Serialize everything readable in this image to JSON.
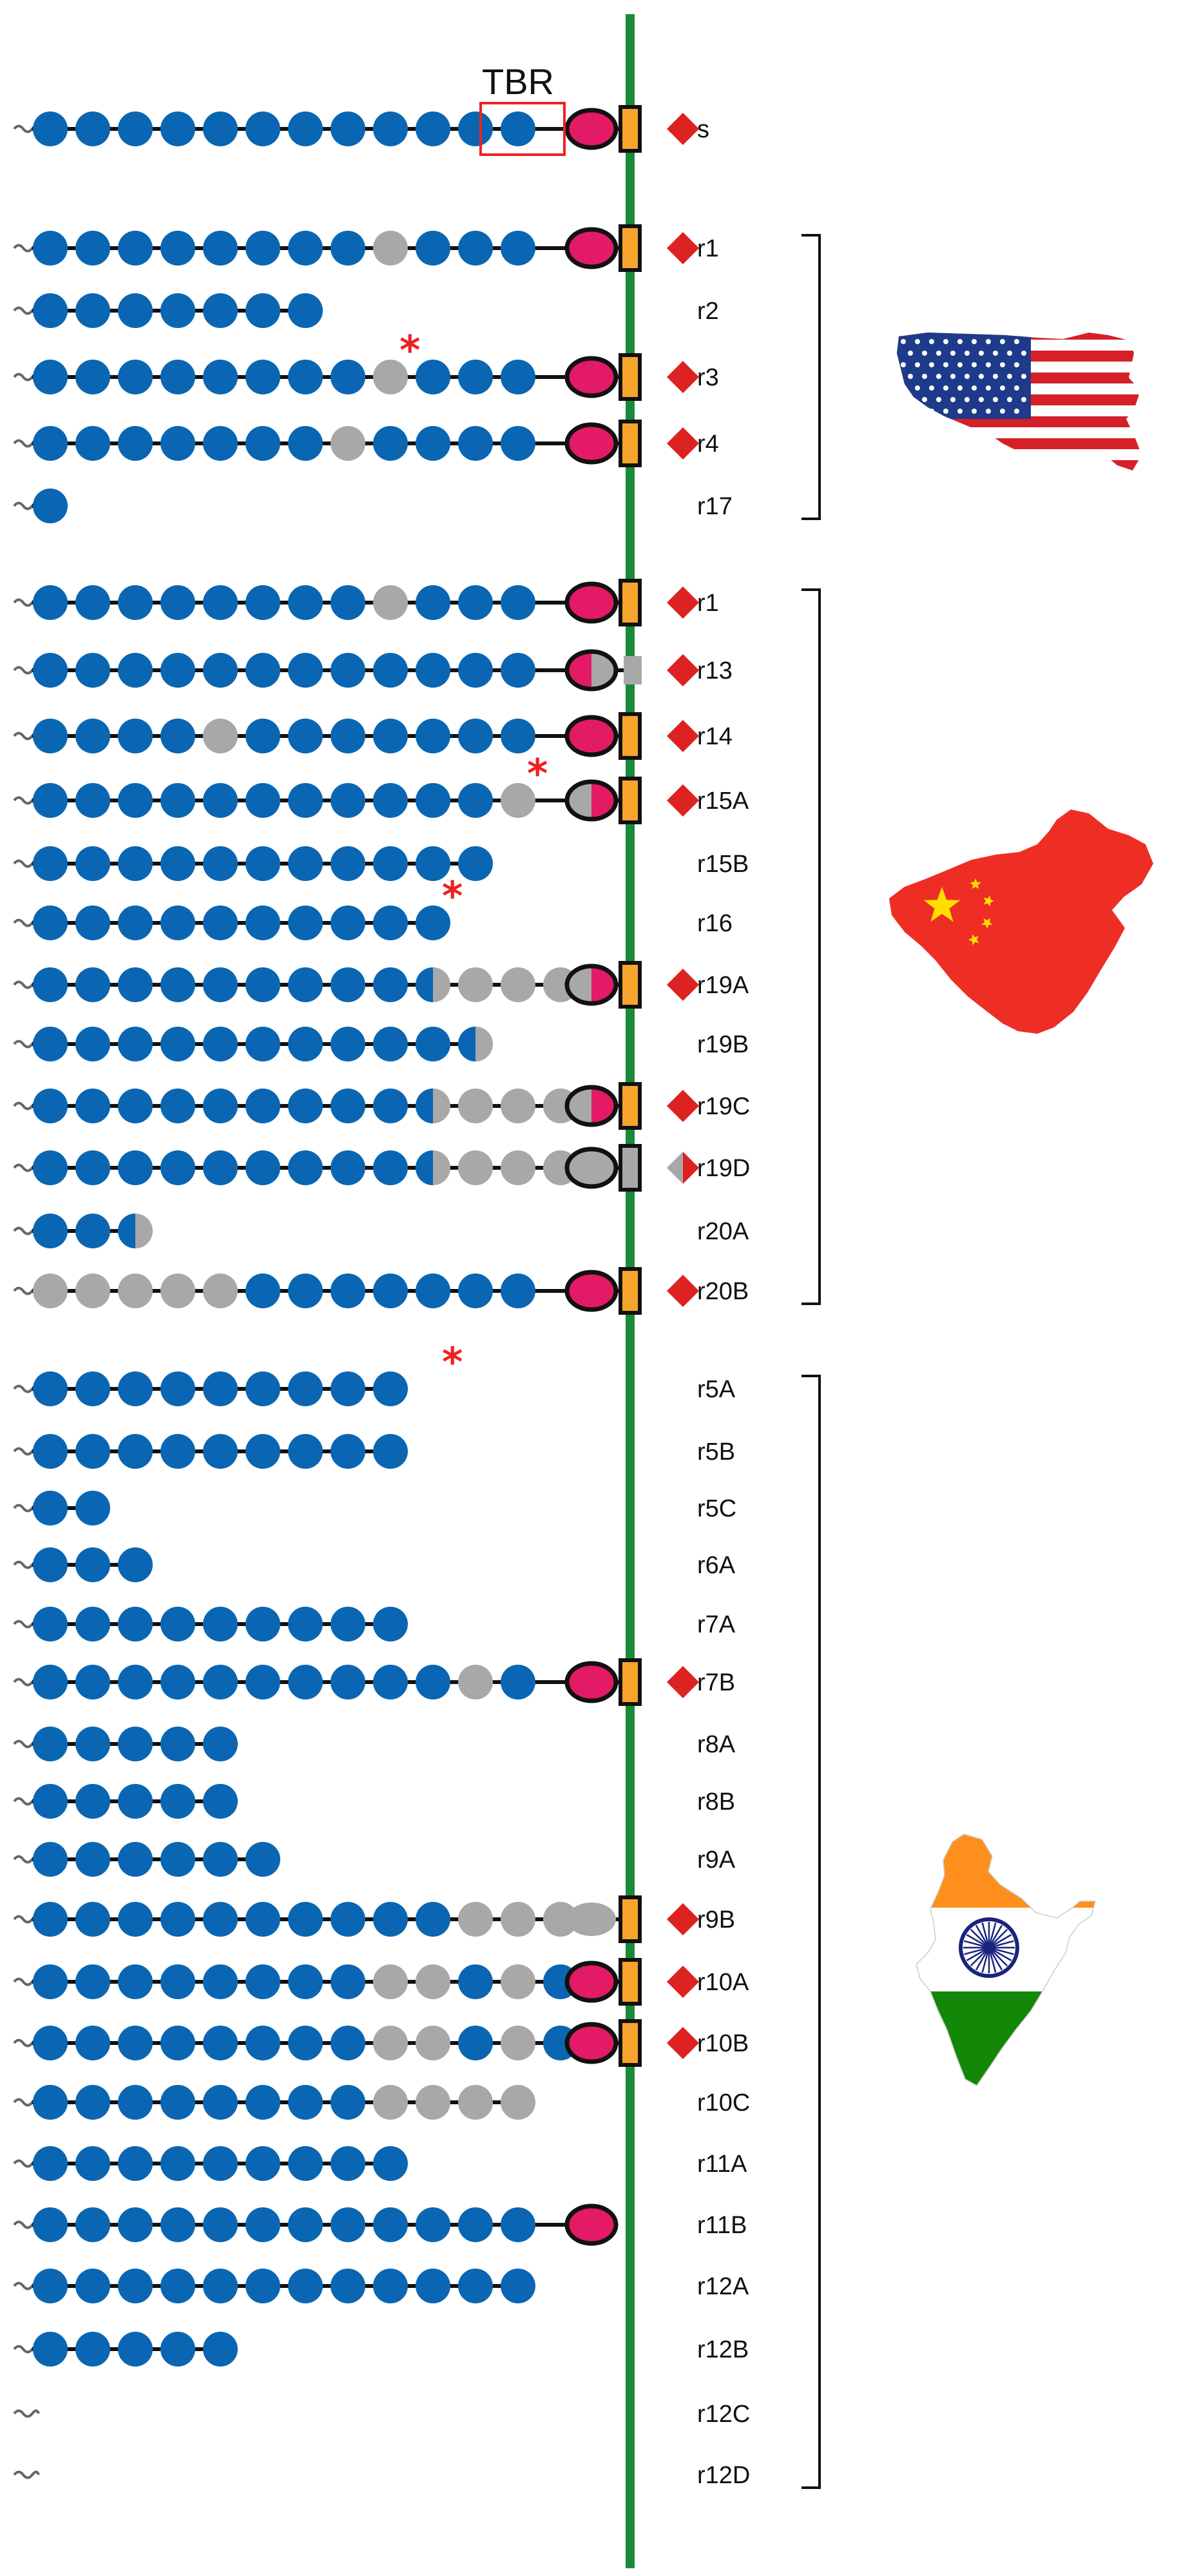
{
  "tbr_label": "TBR",
  "colors": {
    "blue": "#0a66b2",
    "grey": "#a8a8a8",
    "pink": "#e31a66",
    "orange": "#f6a42b",
    "red": "#dd2222",
    "green": "#1a8a3a",
    "star": "#ee2222"
  },
  "rows": [
    {
      "id": "s",
      "label": "s",
      "left": [
        "b",
        "b",
        "b",
        "b",
        "b",
        "b",
        "b",
        "b",
        "b",
        "b",
        "b",
        "b"
      ],
      "oval": "pink",
      "box": "orange",
      "diamond": "red"
    },
    {
      "id": "usa-r1",
      "label": "r1",
      "left": [
        "b",
        "b",
        "b",
        "b",
        "b",
        "b",
        "b",
        "b",
        "g",
        "b",
        "b",
        "b"
      ],
      "oval": "pink",
      "box": "orange",
      "diamond": "red"
    },
    {
      "id": "r2",
      "label": "r2",
      "left": [
        "b",
        "b",
        "b",
        "b",
        "b",
        "b",
        "b"
      ]
    },
    {
      "id": "r3",
      "label": "r3",
      "left": [
        "b",
        "b",
        "b",
        "b",
        "b",
        "b",
        "b",
        "b",
        "g",
        "b",
        "b",
        "b"
      ],
      "oval": "pink",
      "box": "orange",
      "diamond": "red",
      "star": 8
    },
    {
      "id": "r4",
      "label": "r4",
      "left": [
        "b",
        "b",
        "b",
        "b",
        "b",
        "b",
        "b",
        "g",
        "b",
        "b",
        "b",
        "b"
      ],
      "oval": "pink",
      "box": "orange",
      "diamond": "red"
    },
    {
      "id": "r17",
      "label": "r17",
      "left": [
        "b"
      ]
    },
    {
      "id": "china-r1",
      "label": "r1",
      "left": [
        "b",
        "b",
        "b",
        "b",
        "b",
        "b",
        "b",
        "b",
        "g",
        "b",
        "b",
        "b"
      ],
      "oval": "pink",
      "box": "orange",
      "diamond": "red"
    },
    {
      "id": "r13",
      "label": "r13",
      "left": [
        "b",
        "b",
        "b",
        "b",
        "b",
        "b",
        "b",
        "b",
        "b",
        "b",
        "b",
        "b"
      ],
      "oval": "pink-grey",
      "box": "grey-small",
      "diamond": "red"
    },
    {
      "id": "r14",
      "label": "r14",
      "left": [
        "b",
        "b",
        "b",
        "b",
        "g",
        "b",
        "b",
        "b",
        "b",
        "b",
        "b",
        "b"
      ],
      "oval": "pink",
      "box": "orange",
      "diamond": "red"
    },
    {
      "id": "r15A",
      "label": "r15A",
      "left": [
        "b",
        "b",
        "b",
        "b",
        "b",
        "b",
        "b",
        "b",
        "b",
        "b",
        "b",
        "g"
      ],
      "oval": "grey-pink",
      "box": "orange",
      "diamond": "red",
      "star": 11
    },
    {
      "id": "r15B",
      "label": "r15B",
      "left": [
        "b",
        "b",
        "b",
        "b",
        "b",
        "b",
        "b",
        "b",
        "b",
        "b",
        "b"
      ]
    },
    {
      "id": "r16",
      "label": "r16",
      "left": [
        "b",
        "b",
        "b",
        "b",
        "b",
        "b",
        "b",
        "b",
        "b",
        "b"
      ],
      "star": 9
    },
    {
      "id": "r19A",
      "label": "r19A",
      "left": [
        "b",
        "b",
        "b",
        "b",
        "b",
        "b",
        "b",
        "b",
        "b",
        "bg",
        "g",
        "g",
        "g"
      ],
      "oval": "grey-pink",
      "box": "orange",
      "diamond": "red"
    },
    {
      "id": "r19B",
      "label": "r19B",
      "left": [
        "b",
        "b",
        "b",
        "b",
        "b",
        "b",
        "b",
        "b",
        "b",
        "b",
        "bg"
      ]
    },
    {
      "id": "r19C",
      "label": "r19C",
      "left": [
        "b",
        "b",
        "b",
        "b",
        "b",
        "b",
        "b",
        "b",
        "b",
        "bg",
        "g",
        "g",
        "g"
      ],
      "oval": "grey-pink",
      "box": "orange",
      "diamond": "red"
    },
    {
      "id": "r19D",
      "label": "r19D",
      "left": [
        "b",
        "b",
        "b",
        "b",
        "b",
        "b",
        "b",
        "b",
        "b",
        "bg",
        "g",
        "g",
        "g"
      ],
      "oval": "grey",
      "box": "grey",
      "diamond": "grey-red"
    },
    {
      "id": "r20A",
      "label": "r20A",
      "left": [
        "b",
        "b",
        "bg"
      ]
    },
    {
      "id": "r20B",
      "label": "r20B",
      "left": [
        "g",
        "g",
        "g",
        "g",
        "g",
        "b",
        "b",
        "b",
        "b",
        "b",
        "b",
        "b"
      ],
      "oval": "pink",
      "box": "orange",
      "diamond": "red"
    },
    {
      "id": "r5A",
      "label": "r5A",
      "left": [
        "b",
        "b",
        "b",
        "b",
        "b",
        "b",
        "b",
        "b",
        "b"
      ],
      "star": 9
    },
    {
      "id": "r5B",
      "label": "r5B",
      "left": [
        "b",
        "b",
        "b",
        "b",
        "b",
        "b",
        "b",
        "b",
        "b"
      ]
    },
    {
      "id": "r5C",
      "label": "r5C",
      "left": [
        "b",
        "b"
      ]
    },
    {
      "id": "r6A",
      "label": "r6A",
      "left": [
        "b",
        "b",
        "b"
      ]
    },
    {
      "id": "r7A",
      "label": "r7A",
      "left": [
        "b",
        "b",
        "b",
        "b",
        "b",
        "b",
        "b",
        "b",
        "b"
      ]
    },
    {
      "id": "r7B",
      "label": "r7B",
      "left": [
        "b",
        "b",
        "b",
        "b",
        "b",
        "b",
        "b",
        "b",
        "b",
        "b",
        "g",
        "b"
      ],
      "oval": "pink",
      "box": "orange",
      "diamond": "red"
    },
    {
      "id": "r8A",
      "label": "r8A",
      "left": [
        "b",
        "b",
        "b",
        "b",
        "b"
      ]
    },
    {
      "id": "r8B",
      "label": "r8B",
      "left": [
        "b",
        "b",
        "b",
        "b",
        "b"
      ]
    },
    {
      "id": "r9A",
      "label": "r9A",
      "left": [
        "b",
        "b",
        "b",
        "b",
        "b",
        "b"
      ]
    },
    {
      "id": "r9B",
      "label": "r9B",
      "left": [
        "b",
        "b",
        "b",
        "b",
        "b",
        "b",
        "b",
        "b",
        "b",
        "b",
        "g",
        "g",
        "g"
      ],
      "oval": "grey",
      "box": "orange",
      "diamond": "red",
      "ovalFlat": true
    },
    {
      "id": "r10A",
      "label": "r10A",
      "left": [
        "b",
        "b",
        "b",
        "b",
        "b",
        "b",
        "b",
        "b",
        "g",
        "g",
        "b",
        "g",
        "b"
      ],
      "oval": "pink",
      "box": "orange",
      "diamond": "red"
    },
    {
      "id": "r10B",
      "label": "r10B",
      "left": [
        "b",
        "b",
        "b",
        "b",
        "b",
        "b",
        "b",
        "b",
        "g",
        "g",
        "b",
        "g",
        "b"
      ],
      "oval": "pink",
      "box": "orange",
      "diamond": "red"
    },
    {
      "id": "r10C",
      "label": "r10C",
      "left": [
        "b",
        "b",
        "b",
        "b",
        "b",
        "b",
        "b",
        "b",
        "g",
        "g",
        "g",
        "g"
      ]
    },
    {
      "id": "r11A",
      "label": "r11A",
      "left": [
        "b",
        "b",
        "b",
        "b",
        "b",
        "b",
        "b",
        "b",
        "b"
      ]
    },
    {
      "id": "r11B",
      "label": "r11B",
      "left": [
        "b",
        "b",
        "b",
        "b",
        "b",
        "b",
        "b",
        "b",
        "b",
        "b",
        "b",
        "b"
      ],
      "oval": "pink"
    },
    {
      "id": "r12A",
      "label": "r12A",
      "left": [
        "b",
        "b",
        "b",
        "b",
        "b",
        "b",
        "b",
        "b",
        "b",
        "b",
        "b",
        "b"
      ]
    },
    {
      "id": "r12B",
      "label": "r12B",
      "left": [
        "b",
        "b",
        "b",
        "b",
        "b"
      ]
    },
    {
      "id": "r12C",
      "label": "r12C",
      "left": []
    },
    {
      "id": "r12D",
      "label": "r12D",
      "left": []
    }
  ],
  "groups": [
    {
      "name": "usa",
      "icon": "usa-flag-map-icon",
      "first_row": 1,
      "last_row": 5
    },
    {
      "name": "china",
      "icon": "china-flag-map-icon",
      "first_row": 6,
      "last_row": 17
    },
    {
      "name": "india",
      "icon": "india-flag-map-icon",
      "first_row": 18,
      "last_row": 36
    }
  ]
}
